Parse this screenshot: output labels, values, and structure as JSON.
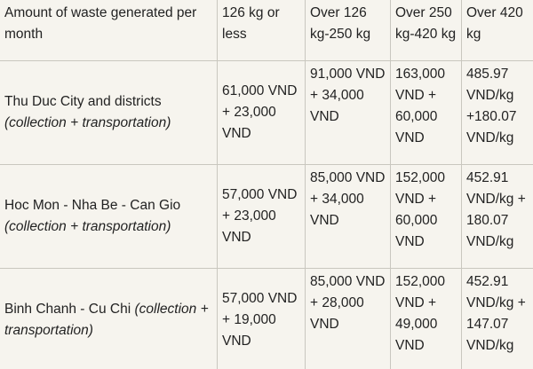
{
  "header": {
    "amount": "Amount of waste generated per month",
    "col1": "126 kg or less",
    "col2": "Over 126 kg-250 kg",
    "col3": "Over 250 kg-420 kg",
    "col4": "Over 420 kg"
  },
  "rows": [
    {
      "region": "Thu Duc City and districts",
      "note": "(collection + transportation)",
      "p1": "61,000 VND + 23,000 VND",
      "p2": "91,000 VND + 34,000 VND",
      "p3": "163,000 VND + 60,000 VND",
      "p4": "485.97 VND/kg +180.07 VND/kg"
    },
    {
      "region": "Hoc Mon - Nha Be - Can Gio",
      "note": "(collection + transportation)",
      "p1": "57,000 VND + 23,000 VND",
      "p2": "85,000 VND + 34,000 VND",
      "p3": "152,000 VND + 60,000 VND",
      "p4": "452.91 VND/kg + 180.07 VND/kg"
    },
    {
      "region": "Binh Chanh - Cu Chi",
      "note": "(collection + transportation)",
      "p1": "57,000 VND + 19,000 VND",
      "p2": "85,000 VND + 28,000 VND",
      "p3": "152,000 VND + 49,000 VND",
      "p4": "452.91 VND/kg + 147.07 VND/kg"
    }
  ]
}
